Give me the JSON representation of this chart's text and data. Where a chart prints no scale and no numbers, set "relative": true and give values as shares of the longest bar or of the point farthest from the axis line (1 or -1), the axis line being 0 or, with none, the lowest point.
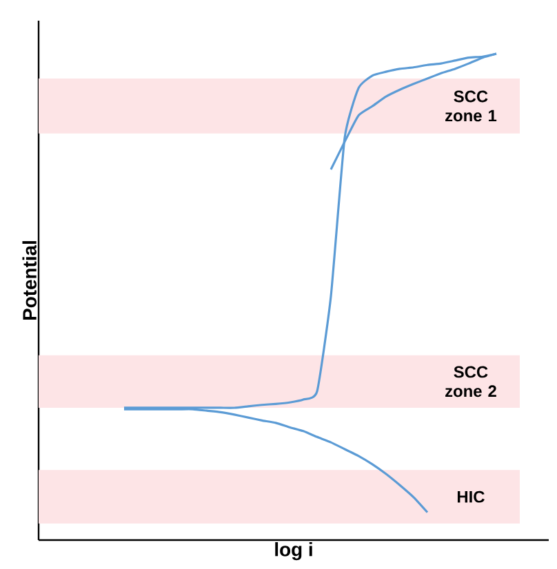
{
  "chart_data": {
    "type": "line",
    "relative": true,
    "xlabel": "log i",
    "ylabel": "Potential",
    "categories": [
      null,
      null,
      null,
      null,
      null,
      null,
      null,
      null,
      null,
      null,
      null,
      null,
      null,
      null,
      null,
      null,
      null,
      null,
      null,
      null,
      null,
      null,
      null,
      null,
      null,
      null,
      null,
      null,
      null,
      null,
      null,
      null,
      null,
      null,
      null
    ],
    "series": [
      {
        "color": "#5b9bd5",
        "values": [
          null,
          null,
          null,
          null,
          null,
          null,
          0.272,
          0.272,
          0.272,
          0.272,
          0.272,
          0.272,
          0.272,
          0.272,
          0.272,
          0.275,
          0.278,
          0.28,
          0.283,
          0.289,
          0.306,
          0.501,
          0.827,
          0.929,
          0.955,
          0.963,
          0.969,
          0.972,
          0.977,
          0.98,
          0.986,
          0.992,
          0.994,
          1,
          null
        ]
      },
      {
        "color": "#5b9bd5",
        "values": [
          null,
          null,
          null,
          null,
          null,
          null,
          null,
          null,
          null,
          null,
          null,
          null,
          null,
          null,
          null,
          null,
          null,
          null,
          null,
          null,
          null,
          0.762,
          0.819,
          0.873,
          0.892,
          0.912,
          0.926,
          0.938,
          0.949,
          0.96,
          0.969,
          0.98,
          0.992,
          1,
          null
        ]
      },
      {
        "color": "#5b9bd5",
        "values": [
          null,
          null,
          null,
          null,
          null,
          null,
          0.269,
          0.269,
          0.269,
          0.269,
          0.269,
          0.269,
          0.266,
          0.263,
          0.258,
          0.252,
          0.246,
          0.241,
          0.232,
          0.224,
          0.212,
          0.201,
          0.187,
          0.173,
          0.156,
          0.136,
          0.113,
          0.088,
          0.057,
          null,
          null,
          null,
          null,
          null,
          null
        ]
      }
    ],
    "bands": [
      {
        "axis": "y",
        "from": 0.836,
        "to": 0.949,
        "label": "SCC zone 1",
        "color": "#fde4e6"
      },
      {
        "axis": "y",
        "from": 0.272,
        "to": 0.38,
        "label": "SCC zone 2",
        "color": "#fde4e6"
      },
      {
        "axis": "y",
        "from": 0.034,
        "to": 0.144,
        "label": "HIC",
        "color": "#fde4e6"
      }
    ],
    "line_style": "solid",
    "marker": "none"
  }
}
